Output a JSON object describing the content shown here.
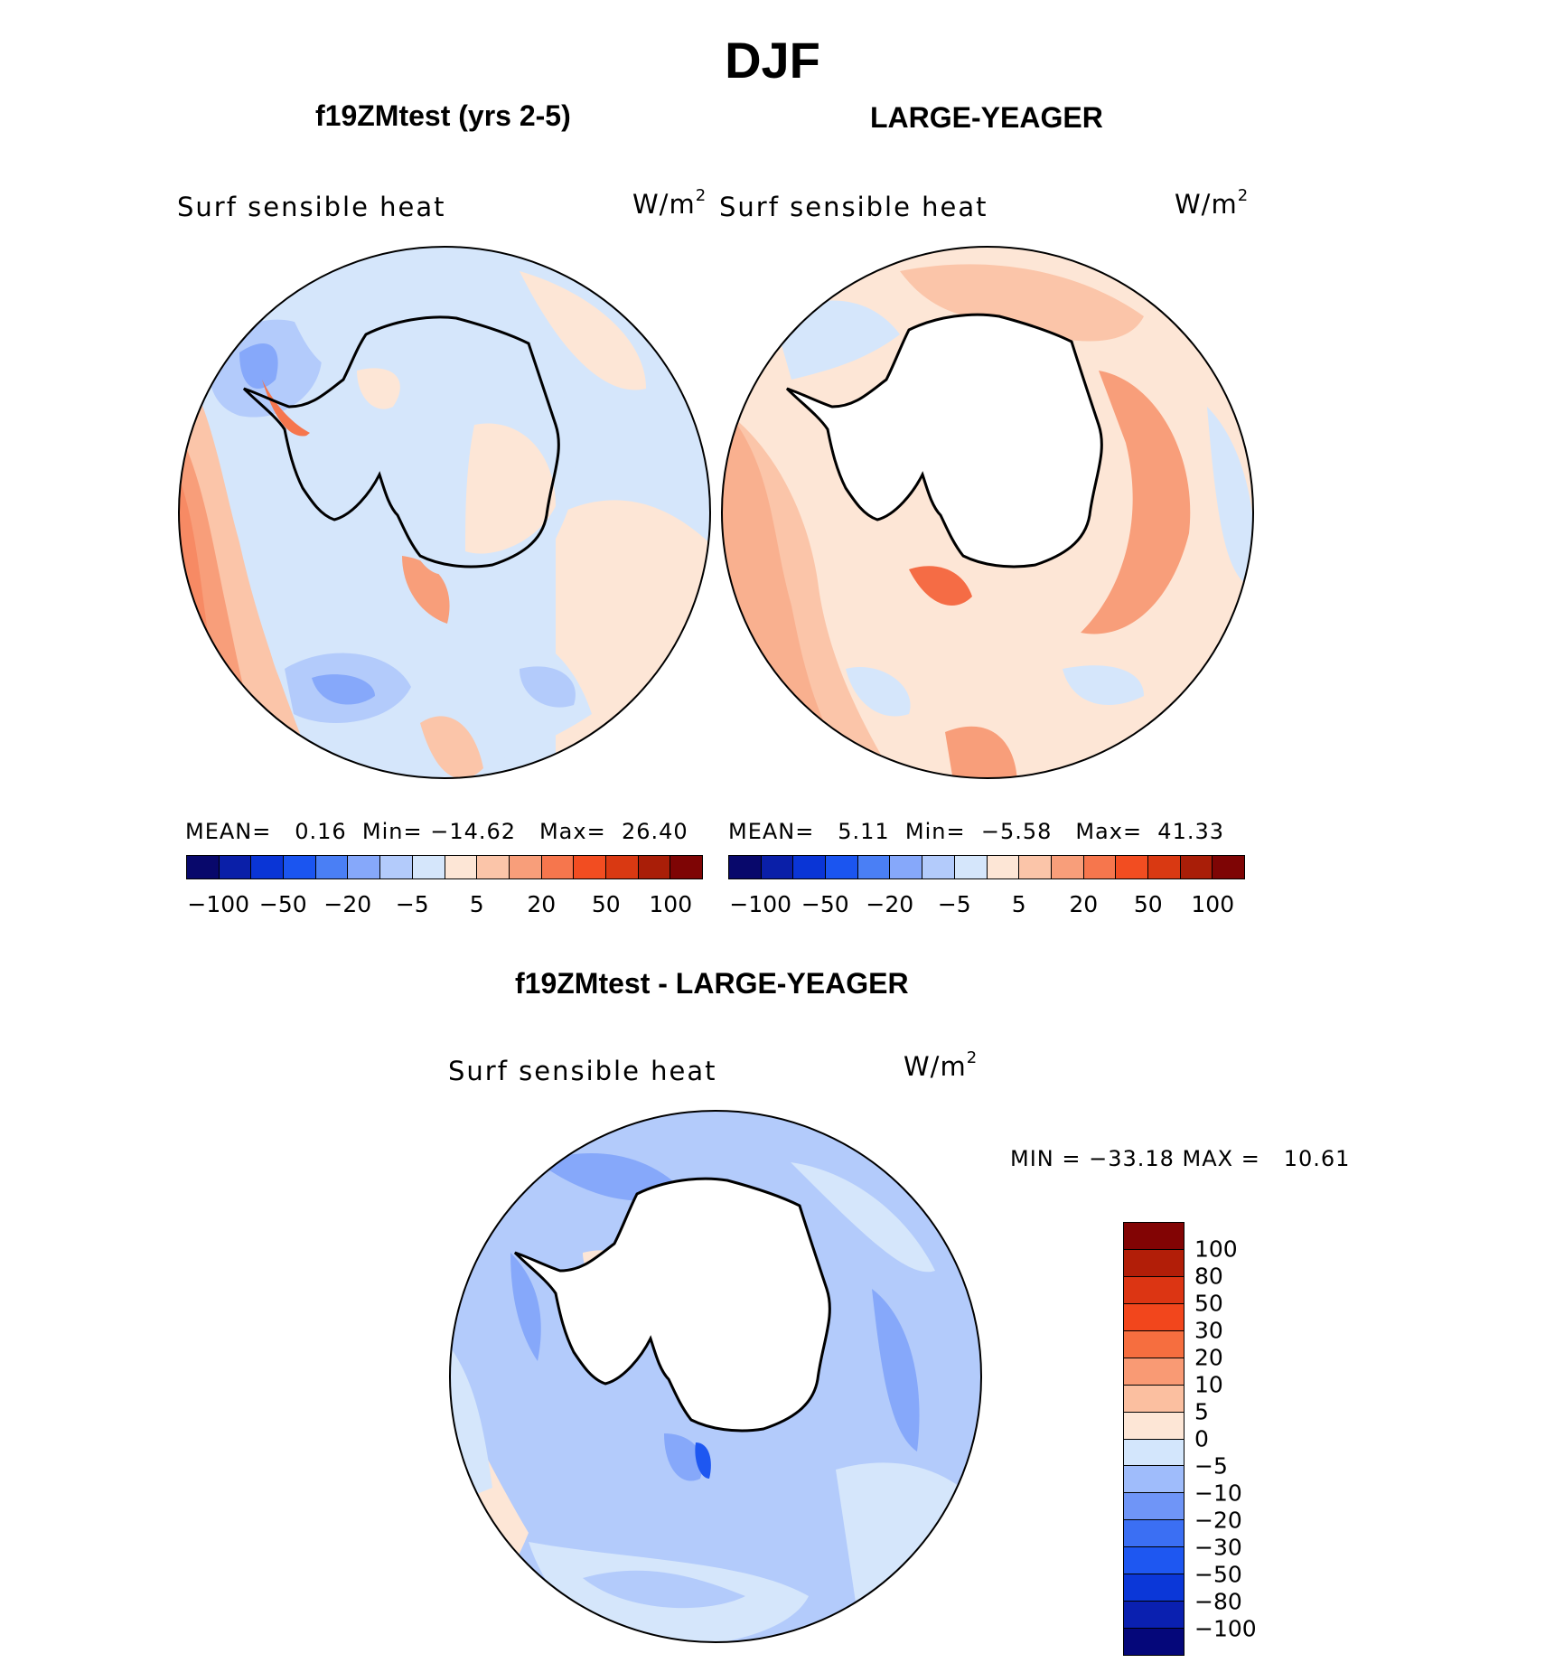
{
  "figure": {
    "title": "DJF"
  },
  "panels": [
    {
      "heading": "f19ZMtest (yrs 2-5)",
      "field_label": "Surf sensible heat",
      "units_base": "W/m",
      "units_exp": "2",
      "stats_text": "MEAN=   0.16  Min= −14.62   Max=  26.40",
      "colorbar_ticks": [
        "−100",
        "−50",
        "−20",
        "−5",
        "5",
        "20",
        "50",
        "100"
      ]
    },
    {
      "heading": "LARGE-YEAGER",
      "field_label": "Surf sensible heat",
      "units_base": "W/m",
      "units_exp": "2",
      "stats_text": "MEAN=   5.11  Min=  −5.58   Max=  41.33",
      "colorbar_ticks": [
        "−100",
        "−50",
        "−20",
        "−5",
        "5",
        "20",
        "50",
        "100"
      ]
    }
  ],
  "difference": {
    "heading": "f19ZMtest - LARGE-YEAGER",
    "field_label": "Surf sensible heat",
    "units_base": "W/m",
    "units_exp": "2",
    "stats_text": "MIN = −33.18 MAX =   10.61",
    "colorbar_ticks": [
      "100",
      "80",
      "50",
      "30",
      "20",
      "10",
      "5",
      "0",
      "−5",
      "−10",
      "−20",
      "−30",
      "−50",
      "−80",
      "−100"
    ]
  },
  "colors": {
    "abs_scale": [
      "#08086b",
      "#0a1fa8",
      "#0a35d6",
      "#1b55f0",
      "#4a7ff5",
      "#86a8fa",
      "#b3cbfb",
      "#d5e6fb",
      "#fde6d6",
      "#fbc5a9",
      "#f89e7a",
      "#f6764d",
      "#f24d21",
      "#d93912",
      "#a91e08",
      "#7e0505"
    ],
    "diff_scale": [
      "#05077a",
      "#0a20b0",
      "#0b37d8",
      "#1e57f1",
      "#3b6ff3",
      "#6f95f7",
      "#9fbcfb",
      "#d3e6fc",
      "#fde6d6",
      "#fbbfa0",
      "#f99a74",
      "#f66e3f",
      "#f2461c",
      "#dc3513",
      "#b21e08",
      "#820404"
    ],
    "blue_light": "#d5e6fb",
    "blue_mid": "#b3cbfb",
    "blue_med": "#86a8fa",
    "blue_dark": "#4a7ff5",
    "peach": "#fde6d6",
    "salmon": "#fbc5a9",
    "orange": "#f89e7a",
    "red": "#f24d21",
    "land": "#ffffff"
  }
}
